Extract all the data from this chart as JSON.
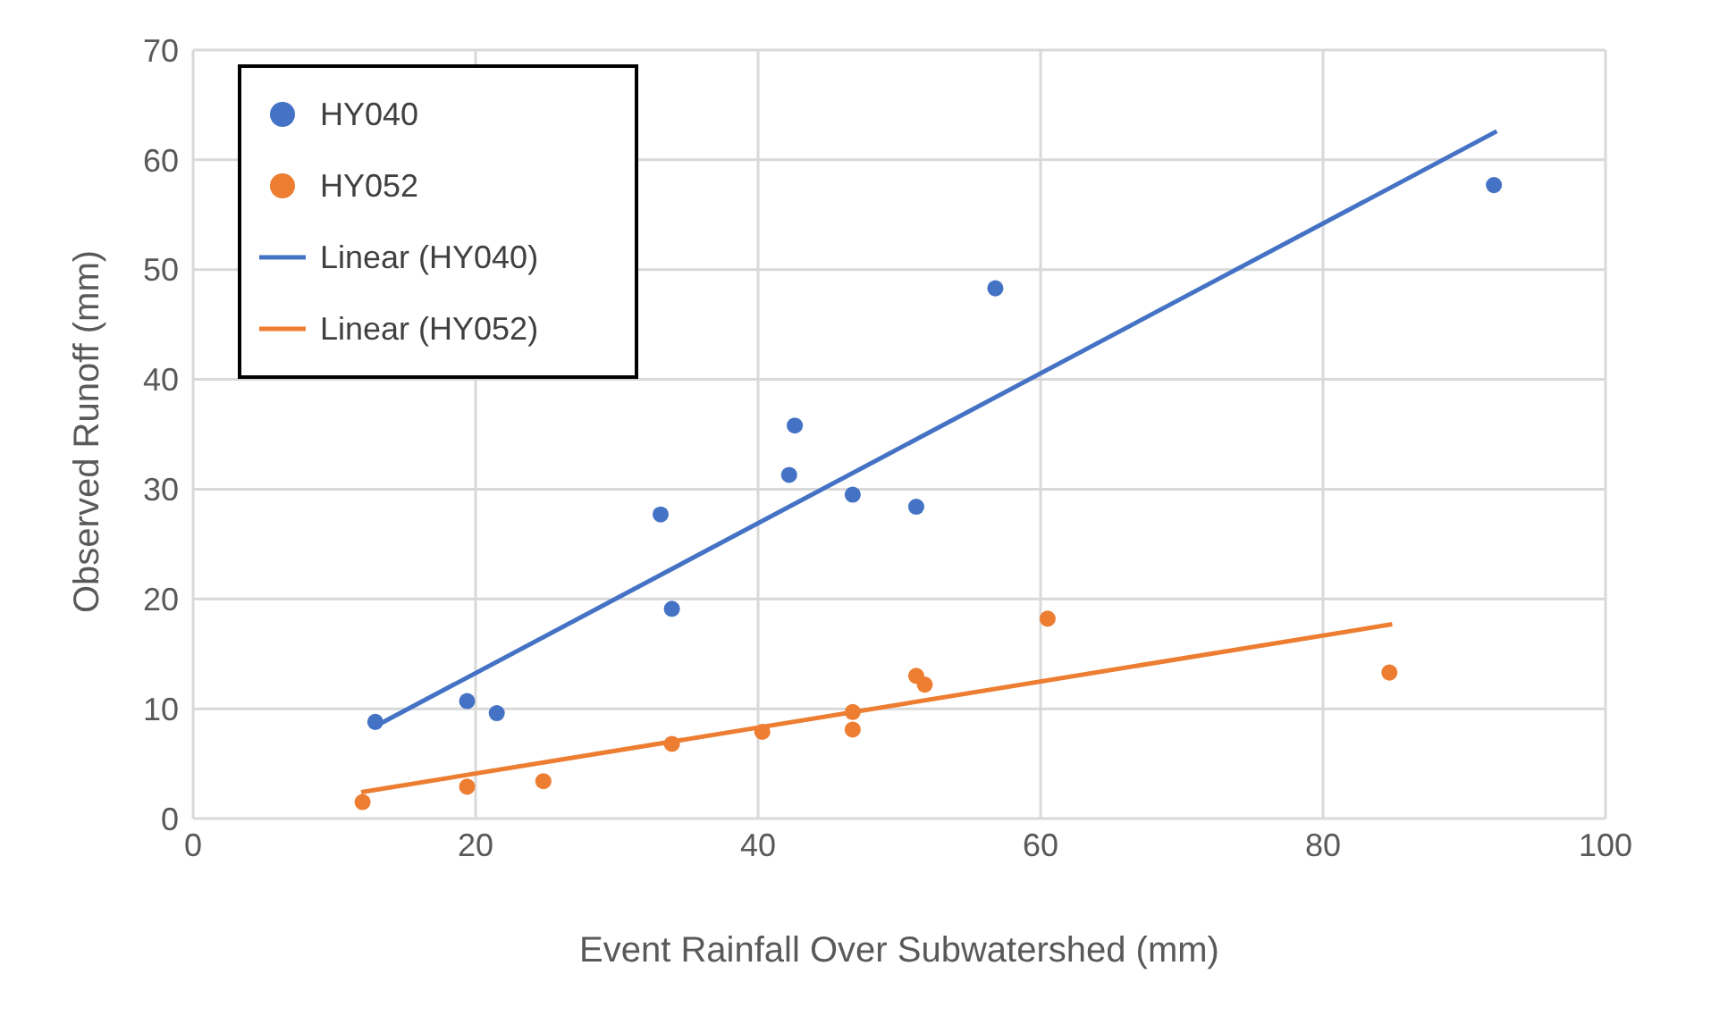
{
  "chart_data": {
    "type": "scatter",
    "xlabel": "Event Rainfall Over Subwatershed (mm)",
    "ylabel": "Observed Runoff (mm)",
    "xlim": [
      0,
      100
    ],
    "xticks": [
      0,
      20,
      40,
      60,
      80,
      100
    ],
    "ylim": [
      0,
      70
    ],
    "yticks": [
      0,
      10,
      20,
      30,
      40,
      50,
      60,
      70
    ],
    "grid": true,
    "legend": "top left",
    "series": [
      {
        "name": "HY040",
        "type": "scatter",
        "color": "#4472c4",
        "marker": "circle",
        "x": [
          12.9,
          19.4,
          21.5,
          33.1,
          33.9,
          42.2,
          42.6,
          46.7,
          51.2,
          56.8,
          92.1
        ],
        "values": [
          8.8,
          10.7,
          9.6,
          27.7,
          19.1,
          31.3,
          35.8,
          29.5,
          28.4,
          48.3,
          57.7
        ]
      },
      {
        "name": "HY052",
        "type": "scatter",
        "color": "#ed7d31",
        "marker": "circle",
        "x": [
          12.0,
          19.4,
          24.8,
          33.9,
          40.3,
          46.7,
          46.7,
          51.2,
          51.8,
          60.5,
          84.7
        ],
        "values": [
          1.5,
          2.9,
          3.4,
          6.8,
          7.9,
          9.7,
          8.1,
          13.0,
          12.2,
          18.2,
          13.3
        ]
      },
      {
        "name": "Linear (HY040)",
        "type": "line",
        "color": "#4472c4",
        "line_style": "solid",
        "marker": "none",
        "x": [
          12.9,
          92.3
        ],
        "values": [
          8.4,
          62.6
        ]
      },
      {
        "name": "Linear (HY052)",
        "type": "line",
        "color": "#ed7d31",
        "line_style": "solid",
        "marker": "none",
        "x": [
          11.9,
          84.9
        ],
        "values": [
          2.4,
          17.7
        ]
      }
    ]
  }
}
